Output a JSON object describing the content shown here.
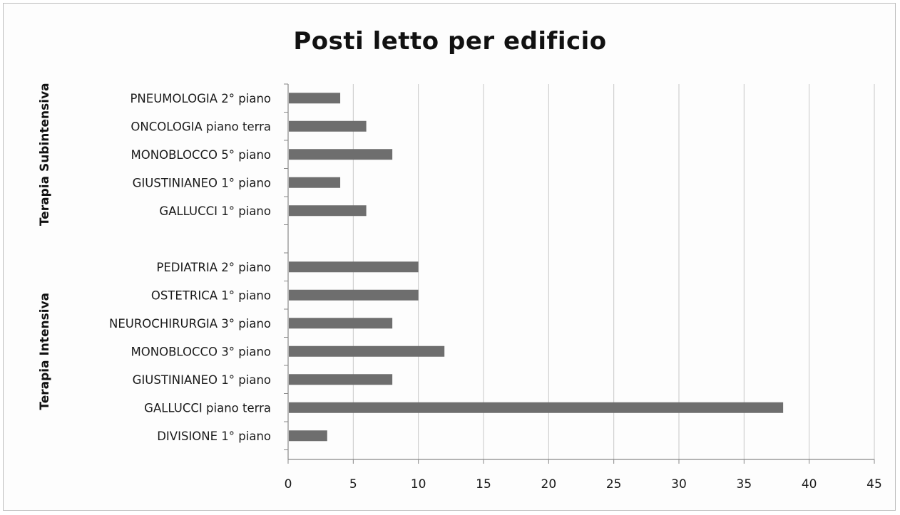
{
  "chart_data": {
    "type": "bar",
    "orientation": "horizontal",
    "title": "Posti letto per edificio",
    "xlim": [
      0,
      45
    ],
    "x_ticks": [
      "0",
      "5",
      "10",
      "15",
      "20",
      "25",
      "30",
      "35",
      "40",
      "45"
    ],
    "grid": "vertical",
    "bar_color": "#6e6e6e",
    "groups": [
      {
        "name": "Terapia Subintensiva",
        "categories": [
          "PNEUMOLOGIA 2° piano",
          "ONCOLOGIA piano terra",
          "MONOBLOCCO 5° piano",
          "GIUSTINIANEO 1° piano",
          "GALLUCCI 1° piano"
        ],
        "values": [
          4,
          6,
          8,
          4,
          6
        ]
      },
      {
        "name": "Terapia Intensiva",
        "categories": [
          "PEDIATRIA 2° piano",
          "OSTETRICA 1° piano",
          "NEUROCHIRURGIA 3° piano",
          "MONOBLOCCO 3° piano",
          "GIUSTINIANEO 1° piano",
          "GALLUCCI piano terra",
          "DIVISIONE 1° piano"
        ],
        "values": [
          10,
          10,
          8,
          12,
          8,
          38,
          3
        ]
      }
    ]
  }
}
